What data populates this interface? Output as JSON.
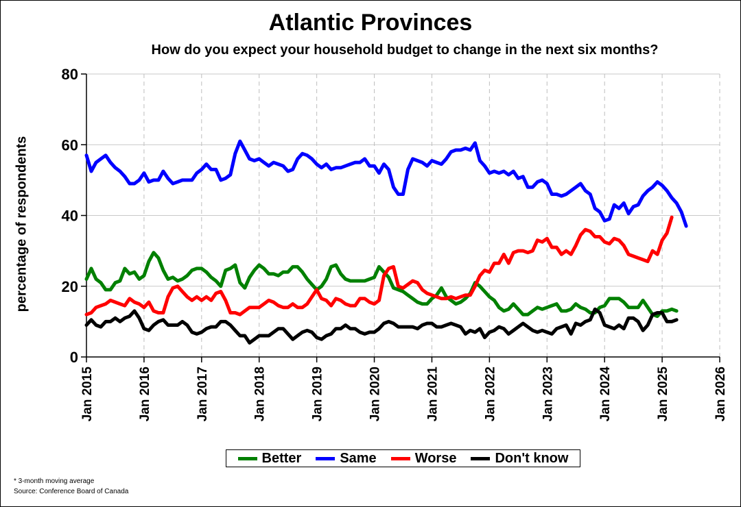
{
  "title": "Atlantic Provinces",
  "subtitle": "How do you expect your household budget to change in the next six months?",
  "footnote": "* 3-month moving average",
  "source": "Source: Conference Board of Canada",
  "chart_data": {
    "type": "line",
    "ylabel": "percentage of respondents",
    "xlabel": "",
    "ylim": [
      0,
      80
    ],
    "yticks": [
      0,
      20,
      40,
      60,
      80
    ],
    "xlim": [
      "2015-01",
      "2026-01"
    ],
    "xticks": [
      "Jan 2015",
      "Jan 2016",
      "Jan 2017",
      "Jan 2018",
      "Jan 2019",
      "Jan 2020",
      "Jan 2021",
      "Jan 2022",
      "Jan 2023",
      "Jan 2024",
      "Jan 2025",
      "Jan 2026"
    ],
    "grid": true,
    "legend_position": "bottom",
    "start": "2015-01",
    "series": [
      {
        "name": "Better",
        "color": "#008000",
        "values": [
          22,
          25,
          22,
          21,
          19,
          19,
          21,
          21.5,
          25,
          23.5,
          24,
          22,
          23,
          27,
          29.5,
          28,
          24.5,
          22,
          22.5,
          21.5,
          22,
          23,
          24.5,
          25,
          25,
          24,
          22.5,
          21.5,
          20,
          24.5,
          25,
          26,
          21,
          19.5,
          22.5,
          24.5,
          26,
          25,
          23.5,
          23.5,
          23,
          24,
          24,
          25.5,
          25.5,
          24,
          22,
          20.5,
          19,
          20,
          22,
          25.5,
          26,
          23.5,
          22,
          21.5,
          21.5,
          21.5,
          21.5,
          22,
          22.5,
          25.5,
          24,
          22.5,
          19.5,
          19,
          18.5,
          17.5,
          16.5,
          15.5,
          15,
          15,
          16.5,
          17.5,
          19.5,
          17,
          16,
          15,
          15.5,
          16.5,
          18,
          21,
          20,
          18.5,
          17,
          16,
          14,
          13,
          13.5,
          15,
          13.5,
          12,
          12,
          13,
          14,
          13.5,
          14,
          14.5,
          15,
          13,
          13,
          13.5,
          15,
          14,
          13.5,
          12.5,
          12.5,
          14,
          14.5,
          16.5,
          16.5,
          16.5,
          15.5,
          14,
          14,
          14,
          16,
          14,
          12,
          11.5,
          13,
          13,
          13.5,
          13
        ]
      },
      {
        "name": "Same",
        "color": "#0000ff",
        "values": [
          57,
          52.5,
          55,
          56,
          57,
          55,
          53.5,
          52.5,
          51,
          49,
          49,
          50,
          52,
          49.5,
          50,
          50,
          52.5,
          50.5,
          49,
          49.5,
          50,
          50,
          50,
          52,
          53,
          54.5,
          53,
          53,
          50,
          50.5,
          51.5,
          57.5,
          61,
          58.5,
          56,
          55.5,
          56,
          55,
          54,
          55,
          54.5,
          54,
          52.5,
          53,
          56,
          57.5,
          57,
          56,
          54.5,
          53.5,
          54.5,
          53,
          53.5,
          53.5,
          54,
          54.5,
          55,
          55,
          56,
          54,
          54,
          52,
          54.5,
          53,
          48,
          46,
          46,
          53,
          56,
          55.5,
          55,
          54,
          55.5,
          55,
          54.5,
          56,
          58,
          58.5,
          58.5,
          59,
          58.5,
          60.5,
          55.5,
          54,
          52,
          52.5,
          52,
          52.5,
          51.5,
          52.5,
          50.5,
          51,
          48,
          48,
          49.5,
          50,
          49,
          46,
          46,
          45.5,
          46,
          47,
          48,
          49,
          47,
          46,
          42,
          41,
          38.5,
          39,
          43,
          42,
          43.5,
          40.5,
          42.5,
          43,
          45.5,
          47,
          48,
          49.5,
          48.5,
          47,
          45,
          43.5,
          41,
          37
        ]
      },
      {
        "name": "Worse",
        "color": "#ff0000",
        "values": [
          12,
          12.5,
          14,
          14.5,
          15,
          16,
          15.5,
          15,
          14.5,
          16.5,
          15.5,
          15,
          14,
          15.5,
          13,
          12.5,
          12.5,
          17,
          19.5,
          20,
          18.5,
          17,
          16,
          17,
          16,
          17,
          16,
          18,
          18.5,
          16,
          12.5,
          12.5,
          12,
          13,
          14,
          14,
          14,
          15,
          16,
          15.5,
          14.5,
          14,
          14,
          15,
          14,
          14,
          15,
          17,
          19,
          16.5,
          16,
          14.5,
          16.5,
          16,
          15,
          14.5,
          14.5,
          16.5,
          16.5,
          15.5,
          15,
          16,
          23,
          25,
          25.5,
          20,
          19.5,
          20.5,
          21.5,
          21,
          19,
          18,
          17.5,
          17,
          16.5,
          16.5,
          17,
          16.5,
          17,
          17.5,
          17.5,
          20,
          23,
          24.5,
          24,
          26.5,
          26.5,
          29,
          26.5,
          29.5,
          30,
          30,
          29.5,
          30,
          33,
          32.5,
          33.5,
          31,
          31,
          29,
          30,
          29,
          31.5,
          34.5,
          36,
          35.5,
          34,
          34,
          32.5,
          32,
          33.5,
          33,
          31.5,
          29,
          28.5,
          28,
          27.5,
          27,
          30,
          29,
          33,
          35,
          39.5
        ]
      },
      {
        "name": "Don't know",
        "color": "#000000",
        "values": [
          9,
          10.5,
          9,
          8.5,
          10,
          10,
          11,
          10,
          11,
          11.5,
          13,
          11,
          8,
          7.5,
          9,
          10,
          10.5,
          9,
          9,
          9,
          10,
          9,
          7,
          6.5,
          7,
          8,
          8.5,
          8.5,
          10,
          10,
          9,
          7.5,
          6,
          6,
          4,
          5,
          6,
          6,
          6,
          7,
          8,
          8,
          6.5,
          5,
          6,
          7,
          7.5,
          7,
          5.5,
          5,
          6,
          6.5,
          8,
          8,
          9,
          8,
          8,
          7,
          6.5,
          7,
          7,
          8,
          9.5,
          10,
          9.5,
          8.5,
          8.5,
          8.5,
          8.5,
          8,
          9,
          9.5,
          9.5,
          8.5,
          8.5,
          9,
          9.5,
          9,
          8.5,
          6.5,
          7.5,
          7,
          8,
          5.5,
          7,
          7.5,
          8.5,
          8,
          6.5,
          7.5,
          8.5,
          9.5,
          8.5,
          7.5,
          7,
          7.5,
          7,
          6.5,
          8,
          8.5,
          9,
          6.5,
          9.5,
          9,
          10,
          10.5,
          13.5,
          12.5,
          9,
          8.5,
          8,
          9,
          8,
          11,
          11,
          10,
          7.5,
          9,
          12,
          12.5,
          12.5,
          10,
          10,
          10.5
        ]
      }
    ]
  }
}
